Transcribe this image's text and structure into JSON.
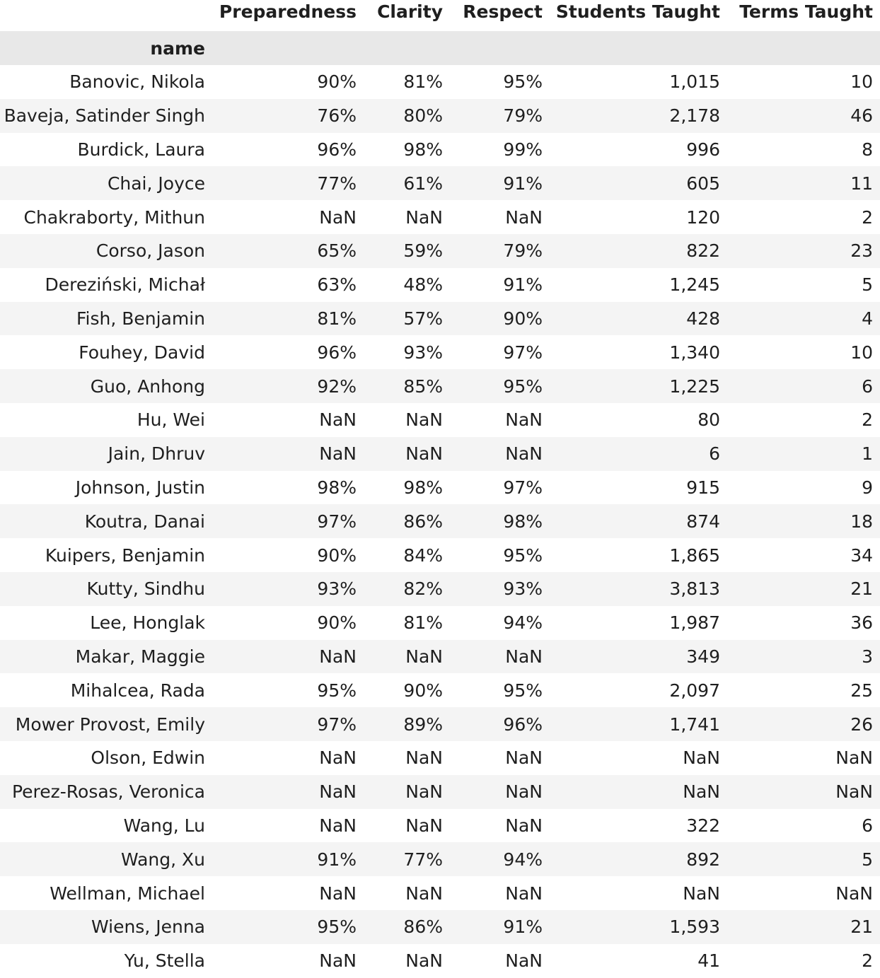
{
  "table": {
    "columns": [
      "Preparedness",
      "Clarity",
      "Respect",
      "Students Taught",
      "Terms Taught"
    ],
    "index_name": "name",
    "rows": [
      {
        "name": "Banovic, Nikola",
        "values": [
          "90%",
          "81%",
          "95%",
          "1,015",
          "10"
        ]
      },
      {
        "name": "Baveja, Satinder Singh",
        "values": [
          "76%",
          "80%",
          "79%",
          "2,178",
          "46"
        ]
      },
      {
        "name": "Burdick, Laura",
        "values": [
          "96%",
          "98%",
          "99%",
          "996",
          "8"
        ]
      },
      {
        "name": "Chai, Joyce",
        "values": [
          "77%",
          "61%",
          "91%",
          "605",
          "11"
        ]
      },
      {
        "name": "Chakraborty, Mithun",
        "values": [
          "NaN",
          "NaN",
          "NaN",
          "120",
          "2"
        ]
      },
      {
        "name": "Corso, Jason",
        "values": [
          "65%",
          "59%",
          "79%",
          "822",
          "23"
        ]
      },
      {
        "name": "Dereziński, Michał",
        "values": [
          "63%",
          "48%",
          "91%",
          "1,245",
          "5"
        ]
      },
      {
        "name": "Fish, Benjamin",
        "values": [
          "81%",
          "57%",
          "90%",
          "428",
          "4"
        ]
      },
      {
        "name": "Fouhey, David",
        "values": [
          "96%",
          "93%",
          "97%",
          "1,340",
          "10"
        ]
      },
      {
        "name": "Guo, Anhong",
        "values": [
          "92%",
          "85%",
          "95%",
          "1,225",
          "6"
        ]
      },
      {
        "name": "Hu, Wei",
        "values": [
          "NaN",
          "NaN",
          "NaN",
          "80",
          "2"
        ]
      },
      {
        "name": "Jain, Dhruv",
        "values": [
          "NaN",
          "NaN",
          "NaN",
          "6",
          "1"
        ]
      },
      {
        "name": "Johnson, Justin",
        "values": [
          "98%",
          "98%",
          "97%",
          "915",
          "9"
        ]
      },
      {
        "name": "Koutra, Danai",
        "values": [
          "97%",
          "86%",
          "98%",
          "874",
          "18"
        ]
      },
      {
        "name": "Kuipers, Benjamin",
        "values": [
          "90%",
          "84%",
          "95%",
          "1,865",
          "34"
        ]
      },
      {
        "name": "Kutty, Sindhu",
        "values": [
          "93%",
          "82%",
          "93%",
          "3,813",
          "21"
        ]
      },
      {
        "name": "Lee, Honglak",
        "values": [
          "90%",
          "81%",
          "94%",
          "1,987",
          "36"
        ]
      },
      {
        "name": "Makar, Maggie",
        "values": [
          "NaN",
          "NaN",
          "NaN",
          "349",
          "3"
        ]
      },
      {
        "name": "Mihalcea, Rada",
        "values": [
          "95%",
          "90%",
          "95%",
          "2,097",
          "25"
        ]
      },
      {
        "name": "Mower Provost, Emily",
        "values": [
          "97%",
          "89%",
          "96%",
          "1,741",
          "26"
        ]
      },
      {
        "name": "Olson, Edwin",
        "values": [
          "NaN",
          "NaN",
          "NaN",
          "NaN",
          "NaN"
        ]
      },
      {
        "name": "Perez-Rosas, Veronica",
        "values": [
          "NaN",
          "NaN",
          "NaN",
          "NaN",
          "NaN"
        ]
      },
      {
        "name": "Wang, Lu",
        "values": [
          "NaN",
          "NaN",
          "NaN",
          "322",
          "6"
        ]
      },
      {
        "name": "Wang, Xu",
        "values": [
          "91%",
          "77%",
          "94%",
          "892",
          "5"
        ]
      },
      {
        "name": "Wellman, Michael",
        "values": [
          "NaN",
          "NaN",
          "NaN",
          "NaN",
          "NaN"
        ]
      },
      {
        "name": "Wiens, Jenna",
        "values": [
          "95%",
          "86%",
          "91%",
          "1,593",
          "21"
        ]
      },
      {
        "name": "Yu, Stella",
        "values": [
          "NaN",
          "NaN",
          "NaN",
          "41",
          "2"
        ]
      }
    ]
  }
}
